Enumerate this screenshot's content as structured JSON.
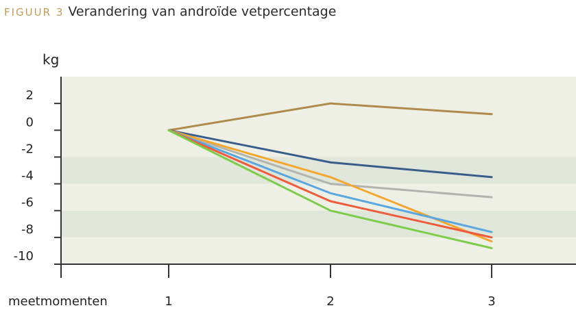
{
  "title": {
    "figure_label": "FIGUUR 3",
    "text": "Verandering van androïde vetpercentage"
  },
  "chart_data": {
    "type": "line",
    "title": "Verandering van androïde vetpercentage",
    "ylabel": "kg",
    "xlabel": "meetmomenten",
    "x": [
      1,
      2,
      3
    ],
    "x_tick_labels": [
      "1",
      "2",
      "3"
    ],
    "y_ticks": [
      2,
      0,
      -2,
      -4,
      -6,
      -8,
      -10
    ],
    "y_tick_labels": [
      "2",
      "0",
      "-2",
      "-4",
      "-6",
      "-8",
      "-10"
    ],
    "ylim": [
      -10,
      4
    ],
    "grid": "alternating horizontal bands",
    "band_colors": [
      "#eef0e6",
      "#e1e6da"
    ],
    "series": [
      {
        "color": "#b08a4b",
        "values": [
          0,
          2.0,
          1.2
        ]
      },
      {
        "color": "#385d8a",
        "values": [
          0,
          -2.4,
          -3.5
        ]
      },
      {
        "color": "#b1b3ad",
        "values": [
          0,
          -4.0,
          -5.0
        ]
      },
      {
        "color": "#f3a72f",
        "values": [
          0,
          -3.5,
          -8.3
        ]
      },
      {
        "color": "#5ba6e0",
        "values": [
          0,
          -4.7,
          -7.6
        ]
      },
      {
        "color": "#ef5b3d",
        "values": [
          0,
          -5.3,
          -8.0
        ]
      },
      {
        "color": "#7dcb4a",
        "values": [
          0,
          -6.0,
          -8.8
        ]
      }
    ]
  }
}
